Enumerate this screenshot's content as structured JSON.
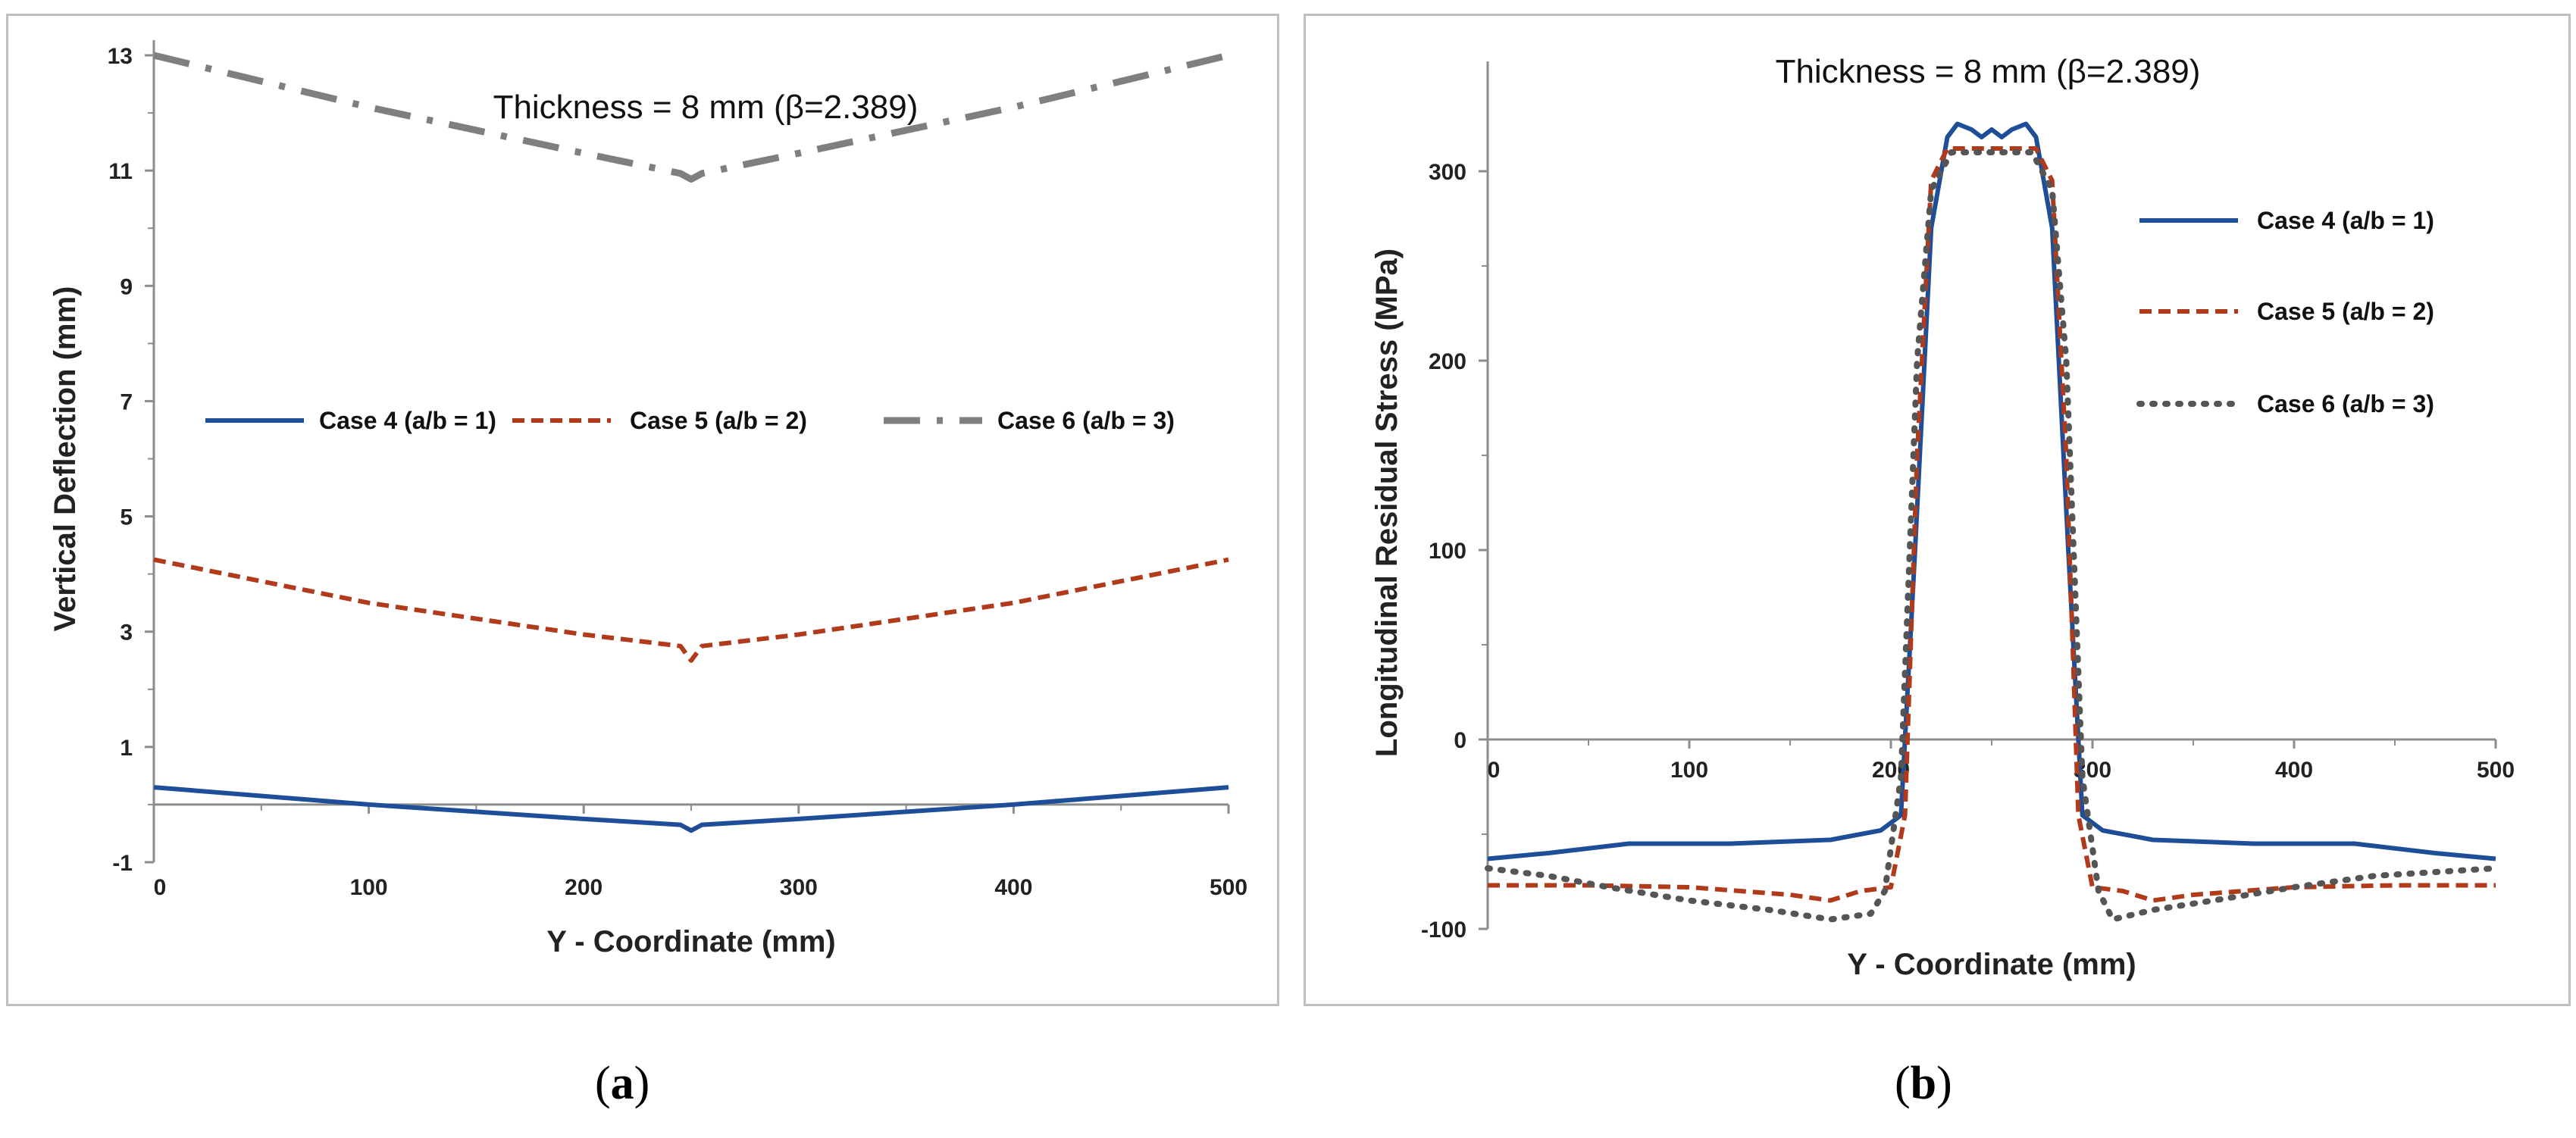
{
  "chart_data": [
    {
      "type": "line",
      "panel": "a",
      "title": "Thickness = 8 mm (β=2.389)",
      "xlabel": "Y - Coordinate (mm)",
      "ylabel": "Vertical Deflection (mm)",
      "xlim": [
        0,
        500
      ],
      "ylim": [
        -1,
        13
      ],
      "xticks": [
        0,
        100,
        200,
        300,
        400,
        500
      ],
      "yticks": [
        -1,
        1,
        3,
        5,
        7,
        9,
        11,
        13
      ],
      "grid": false,
      "legend_position": "middle",
      "series": [
        {
          "name": "Case 4 (a/b = 1)",
          "color": "#1f4e99",
          "dash": "solid",
          "x": [
            0,
            100,
            200,
            245,
            250,
            255,
            300,
            400,
            500
          ],
          "y": [
            0.3,
            0.0,
            -0.25,
            -0.35,
            -0.45,
            -0.35,
            -0.25,
            0.0,
            0.3
          ]
        },
        {
          "name": "Case 5 (a/b = 2)",
          "color": "#b03a1a",
          "dash": "dashed",
          "x": [
            0,
            100,
            200,
            245,
            250,
            255,
            300,
            400,
            500
          ],
          "y": [
            4.25,
            3.5,
            2.95,
            2.75,
            2.5,
            2.75,
            2.95,
            3.5,
            4.25
          ]
        },
        {
          "name": "Case 6 (a/b = 3)",
          "color": "#7f7f7f",
          "dash": "dashdot",
          "x": [
            0,
            100,
            200,
            245,
            250,
            255,
            300,
            400,
            500
          ],
          "y": [
            13.0,
            12.1,
            11.3,
            10.95,
            10.85,
            10.95,
            11.3,
            12.1,
            13.0
          ]
        }
      ]
    },
    {
      "type": "line",
      "panel": "b",
      "title": "Thickness = 8 mm (β=2.389)",
      "xlabel": "Y - Coordinate (mm)",
      "ylabel": "Longitudinal Residual Stress (MPa)",
      "xlim": [
        0,
        500
      ],
      "ylim": [
        -100,
        350
      ],
      "xticks": [
        0,
        100,
        200,
        300,
        400,
        500
      ],
      "yticks": [
        -100,
        0,
        100,
        200,
        300
      ],
      "grid": false,
      "legend_position": "right",
      "series": [
        {
          "name": "Case 4 (a/b = 1)",
          "color": "#1f4e99",
          "dash": "solid",
          "x": [
            0,
            30,
            70,
            120,
            170,
            195,
            205,
            212,
            220,
            228,
            233,
            240,
            245,
            250,
            255,
            260,
            267,
            272,
            280,
            288,
            295,
            305,
            330,
            380,
            430,
            470,
            500
          ],
          "y": [
            -63,
            -60,
            -55,
            -55,
            -53,
            -48,
            -40,
            100,
            270,
            318,
            325,
            322,
            318,
            322,
            318,
            322,
            325,
            318,
            270,
            100,
            -40,
            -48,
            -53,
            -55,
            -55,
            -60,
            -63
          ]
        },
        {
          "name": "Case 5 (a/b = 2)",
          "color": "#b03a1a",
          "dash": "dashed",
          "x": [
            0,
            50,
            100,
            150,
            170,
            185,
            200,
            207,
            213,
            220,
            228,
            240,
            250,
            260,
            272,
            280,
            287,
            293,
            300,
            315,
            330,
            350,
            400,
            450,
            500
          ],
          "y": [
            -77,
            -77,
            -78,
            -82,
            -85,
            -80,
            -78,
            -40,
            150,
            295,
            312,
            312,
            312,
            312,
            312,
            295,
            150,
            -40,
            -78,
            -80,
            -85,
            -82,
            -78,
            -77,
            -77
          ]
        },
        {
          "name": "Case 6 (a/b = 3)",
          "color": "#555555",
          "dash": "dotted",
          "x": [
            0,
            30,
            60,
            100,
            140,
            170,
            190,
            197,
            205,
            213,
            220,
            230,
            240,
            250,
            260,
            270,
            280,
            287,
            295,
            303,
            310,
            330,
            360,
            400,
            440,
            470,
            500
          ],
          "y": [
            -68,
            -72,
            -78,
            -85,
            -90,
            -95,
            -92,
            -80,
            -20,
            200,
            290,
            310,
            310,
            310,
            310,
            310,
            290,
            200,
            -20,
            -80,
            -95,
            -90,
            -85,
            -78,
            -72,
            -70,
            -68
          ]
        }
      ]
    }
  ],
  "labels": {
    "a": "a",
    "b": "b"
  }
}
